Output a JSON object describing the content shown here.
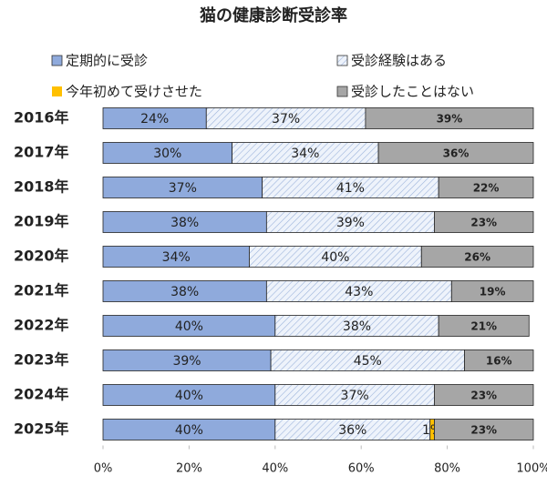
{
  "chart_data": {
    "type": "stacked_barh",
    "title": "猫の健康診断受診率",
    "categories": [
      "2016年",
      "2017年",
      "2018年",
      "2019年",
      "2020年",
      "2021年",
      "2022年",
      "2023年",
      "2024年",
      "2025年"
    ],
    "series": [
      {
        "name": "定期的に受診",
        "color": "#8faadc",
        "hatch": false,
        "values": [
          24,
          30,
          37,
          38,
          34,
          38,
          40,
          39,
          40,
          40
        ],
        "value_labels": [
          "24%",
          "30%",
          "37%",
          "38%",
          "34%",
          "38%",
          "40%",
          "39%",
          "40%",
          "40%"
        ]
      },
      {
        "name": "受診経験はある",
        "color": "#9db4dc",
        "hatch": true,
        "values": [
          37,
          34,
          41,
          39,
          40,
          43,
          38,
          45,
          37,
          36
        ],
        "value_labels": [
          "37%",
          "34%",
          "41%",
          "39%",
          "40%",
          "43%",
          "38%",
          "45%",
          "37%",
          "36%"
        ]
      },
      {
        "name": "今年初めて受けさせた",
        "color": "#ffc000",
        "hatch": false,
        "values": [
          null,
          null,
          null,
          null,
          null,
          null,
          null,
          null,
          null,
          1
        ],
        "value_labels": [
          null,
          null,
          null,
          null,
          null,
          null,
          null,
          null,
          null,
          "1%"
        ]
      },
      {
        "name": "受診したことはない",
        "color": "#a6a6a6",
        "hatch": false,
        "values": [
          39,
          36,
          22,
          23,
          26,
          19,
          21,
          16,
          23,
          23
        ],
        "value_labels": [
          "39%",
          "36%",
          "22%",
          "23%",
          "26%",
          "19%",
          "21%",
          "16%",
          "23%",
          "23%"
        ]
      }
    ],
    "xlim": [
      0,
      100
    ],
    "xticks": [
      {
        "value": 0,
        "label": "0%"
      },
      {
        "value": 20,
        "label": "20%"
      },
      {
        "value": 40,
        "label": "40%"
      },
      {
        "value": 60,
        "label": "60%"
      },
      {
        "value": 80,
        "label": "80%"
      },
      {
        "value": 100,
        "label": "100%"
      }
    ]
  }
}
